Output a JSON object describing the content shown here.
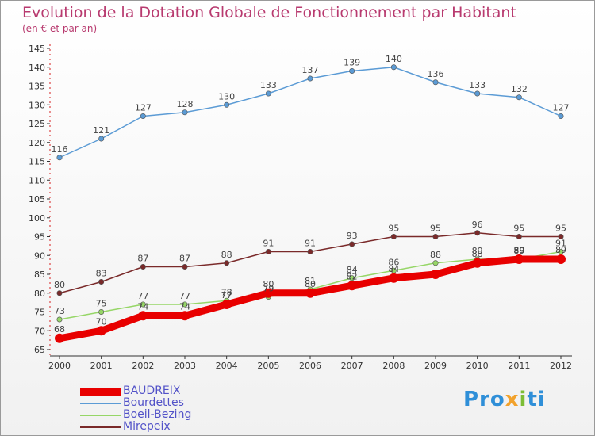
{
  "header": {
    "title": "Evolution de la Dotation Globale de Fonctionnement par Habitant",
    "subtitle": "(en € et par an)"
  },
  "logo": {
    "text": "Proxiti",
    "colors": [
      "#2f8fd8",
      "#f2a22c",
      "#7cbd36"
    ]
  },
  "chart_data": {
    "type": "line",
    "title": "Evolution de la Dotation Globale de Fonctionnement par Habitant",
    "subtitle": "(en € et par an)",
    "xlabel": "",
    "ylabel": "",
    "ylim": [
      65,
      145
    ],
    "ytick_step": 5,
    "grid": false,
    "legend_position": "bottom-left",
    "x": [
      "2000",
      "2001",
      "2002",
      "2003",
      "2004",
      "2005",
      "2006",
      "2007",
      "2008",
      "2009",
      "2010",
      "2011",
      "2012"
    ],
    "series": [
      {
        "name": "BAUDREIX",
        "color": "#e80000",
        "values": [
          68,
          70,
          74,
          74,
          77,
          80,
          80,
          82,
          84,
          85,
          88,
          89,
          89
        ],
        "labels_shown": [
          true,
          true,
          true,
          true,
          true,
          true,
          true,
          true,
          true,
          false,
          true,
          true,
          true
        ]
      },
      {
        "name": "Bourdettes",
        "color": "#5b9bd5",
        "values": [
          116,
          121,
          127,
          128,
          130,
          133,
          137,
          139,
          140,
          136,
          133,
          132,
          127
        ],
        "labels_shown": [
          true,
          true,
          true,
          true,
          true,
          true,
          true,
          true,
          true,
          true,
          true,
          true,
          true
        ]
      },
      {
        "name": "Boeil-Bezing",
        "color": "#96d667",
        "values": [
          73,
          75,
          77,
          77,
          78,
          79,
          81,
          84,
          86,
          88,
          89,
          89,
          91
        ],
        "labels_shown": [
          true,
          true,
          true,
          true,
          true,
          true,
          true,
          true,
          true,
          true,
          true,
          true,
          true
        ]
      },
      {
        "name": "Mirepeix",
        "color": "#7a2a2a",
        "values": [
          80,
          83,
          87,
          87,
          88,
          91,
          91,
          93,
          95,
          95,
          96,
          95,
          95
        ],
        "labels_shown": [
          true,
          true,
          true,
          true,
          true,
          true,
          true,
          true,
          true,
          true,
          true,
          true,
          true
        ]
      }
    ]
  }
}
